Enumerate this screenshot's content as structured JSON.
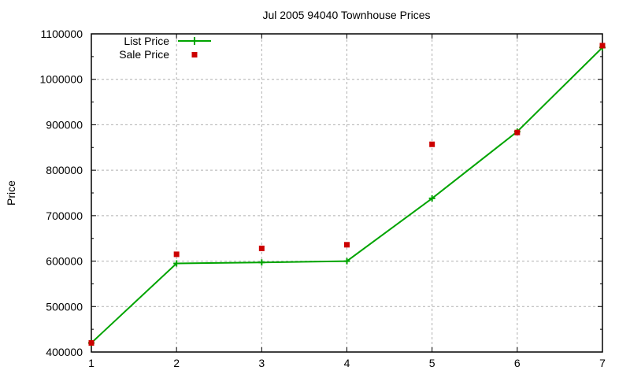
{
  "title": "Jul 2005 94040 Townhouse Prices",
  "y_axis_title": "Price",
  "legend": {
    "position": "top-left-inside",
    "entries": [
      {
        "label": "List Price",
        "sample": "green-line-with-plus-marker"
      },
      {
        "label": "Sale Price",
        "sample": "red-filled-square"
      }
    ]
  },
  "colors": {
    "list_price": "#00a400",
    "sale_price": "#cc0000",
    "grid": "#b0b0b0",
    "axis": "#000000",
    "background": "#ffffff"
  },
  "chart_data": {
    "type": "line",
    "title": "Jul 2005 94040 Townhouse Prices",
    "xlabel": "",
    "ylabel": "Price",
    "x": [
      1,
      2,
      3,
      4,
      5,
      6,
      7
    ],
    "series": [
      {
        "name": "List Price",
        "type": "line",
        "marker": "plus",
        "color": "#00a400",
        "values": [
          420000,
          595000,
          597000,
          600000,
          738000,
          885000,
          1070000
        ]
      },
      {
        "name": "Sale Price",
        "type": "scatter",
        "marker": "square",
        "color": "#cc0000",
        "values": [
          420000,
          615000,
          628000,
          636000,
          857000,
          883000,
          1074000
        ]
      }
    ],
    "xlim": [
      1,
      7
    ],
    "ylim": [
      400000,
      1100000
    ],
    "xticks": [
      1,
      2,
      3,
      4,
      5,
      6,
      7
    ],
    "yticks": [
      400000,
      500000,
      600000,
      700000,
      800000,
      900000,
      1000000,
      1100000
    ],
    "y_minor_tick_step": 50000,
    "grid": true,
    "grid_style": "gray-dashed",
    "legend_position": "top-left-inside"
  }
}
